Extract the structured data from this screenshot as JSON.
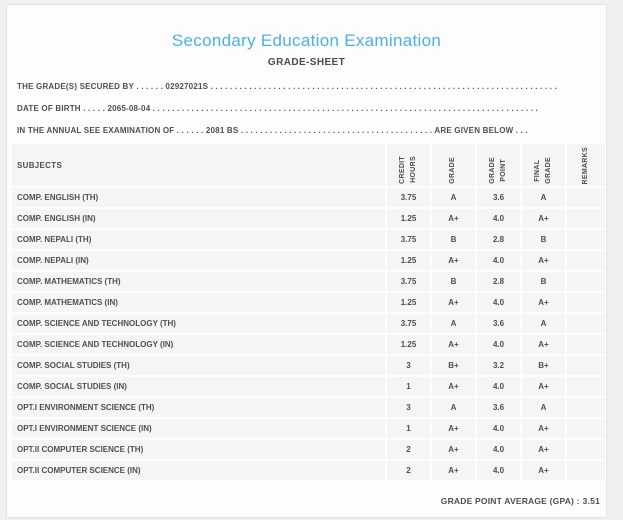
{
  "page": {
    "title": "Secondary Education Examination",
    "subtitle": "GRADE-SHEET"
  },
  "info": {
    "line1": {
      "label": "THE GRADE(S) SECURED BY",
      "dots_a": " . . . . . . ",
      "value": "02927021S",
      "dots_b": " . . . . . . . . . . . . . . . . . . . . . . . . . . . . . . . . . . . . . . . . . . . . . . . . . . . . . . . . . . . . . . . . . . . . . . . . . . . . . . . ."
    },
    "line2": {
      "label": "DATE OF BIRTH",
      "dots_a": " . . . . . ",
      "value": "2065-08-04",
      "dots_b": " . . . . . . . . . . . . . . . . . . . . . . . . . . . . . . . . . . . . . . . . . . . . . . . . . . . . . . . . . . . . . . . . . . . . . . . . . . . . . . . ."
    },
    "line3": {
      "label": "IN THE ANNUAL SEE EXAMINATION OF",
      "dots_a": " . . . . . . ",
      "value": "2081 BS",
      "dots_b": " . . . . . . . . . . . . . . . . . . . . . . . . . . . . . . . . . . . . . . . . ",
      "suffix": "ARE GIVEN BELOW . . ."
    }
  },
  "table": {
    "subjects_header": "SUBJECTS",
    "columns": [
      {
        "id": "credit-hours",
        "label": "CREDIT\nHOURS"
      },
      {
        "id": "grade",
        "label": "GRADE"
      },
      {
        "id": "grade-point",
        "label": "GRADE\nPOINT"
      },
      {
        "id": "final-grade",
        "label": "FINAL\nGRADE"
      },
      {
        "id": "remarks",
        "label": "REMARKS"
      }
    ],
    "rows": [
      {
        "subject": "COMP. ENGLISH (TH)",
        "credit_hours": "3.75",
        "grade": "A",
        "grade_point": "3.6",
        "final_grade": "A",
        "remarks": ""
      },
      {
        "subject": "COMP. ENGLISH (IN)",
        "credit_hours": "1.25",
        "grade": "A+",
        "grade_point": "4.0",
        "final_grade": "A+",
        "remarks": ""
      },
      {
        "subject": "COMP. NEPALI (TH)",
        "credit_hours": "3.75",
        "grade": "B",
        "grade_point": "2.8",
        "final_grade": "B",
        "remarks": ""
      },
      {
        "subject": "COMP. NEPALI (IN)",
        "credit_hours": "1.25",
        "grade": "A+",
        "grade_point": "4.0",
        "final_grade": "A+",
        "remarks": ""
      },
      {
        "subject": "COMP. MATHEMATICS (TH)",
        "credit_hours": "3.75",
        "grade": "B",
        "grade_point": "2.8",
        "final_grade": "B",
        "remarks": ""
      },
      {
        "subject": "COMP. MATHEMATICS (IN)",
        "credit_hours": "1.25",
        "grade": "A+",
        "grade_point": "4.0",
        "final_grade": "A+",
        "remarks": ""
      },
      {
        "subject": "COMP. SCIENCE AND TECHNOLOGY (TH)",
        "credit_hours": "3.75",
        "grade": "A",
        "grade_point": "3.6",
        "final_grade": "A",
        "remarks": ""
      },
      {
        "subject": "COMP. SCIENCE AND TECHNOLOGY (IN)",
        "credit_hours": "1.25",
        "grade": "A+",
        "grade_point": "4.0",
        "final_grade": "A+",
        "remarks": ""
      },
      {
        "subject": "COMP. SOCIAL STUDIES (TH)",
        "credit_hours": "3",
        "grade": "B+",
        "grade_point": "3.2",
        "final_grade": "B+",
        "remarks": ""
      },
      {
        "subject": "COMP. SOCIAL STUDIES (IN)",
        "credit_hours": "1",
        "grade": "A+",
        "grade_point": "4.0",
        "final_grade": "A+",
        "remarks": ""
      },
      {
        "subject": "OPT.I ENVIRONMENT SCIENCE (TH)",
        "credit_hours": "3",
        "grade": "A",
        "grade_point": "3.6",
        "final_grade": "A",
        "remarks": ""
      },
      {
        "subject": "OPT.I ENVIRONMENT SCIENCE (IN)",
        "credit_hours": "1",
        "grade": "A+",
        "grade_point": "4.0",
        "final_grade": "A+",
        "remarks": ""
      },
      {
        "subject": "OPT.II COMPUTER SCIENCE (TH)",
        "credit_hours": "2",
        "grade": "A+",
        "grade_point": "4.0",
        "final_grade": "A+",
        "remarks": ""
      },
      {
        "subject": "OPT.II COMPUTER SCIENCE (IN)",
        "credit_hours": "2",
        "grade": "A+",
        "grade_point": "4.0",
        "final_grade": "A+",
        "remarks": ""
      }
    ]
  },
  "footer": {
    "gpa_label": "GRADE POINT AVERAGE (GPA) :",
    "gpa_value": "3.51"
  },
  "colors": {
    "title_accent": "#4ab1e8",
    "text": "#4f4f4f",
    "cell_background": "#f5f5f5",
    "card_background": "#fdfdfd",
    "page_background": "#f0f0f0"
  }
}
